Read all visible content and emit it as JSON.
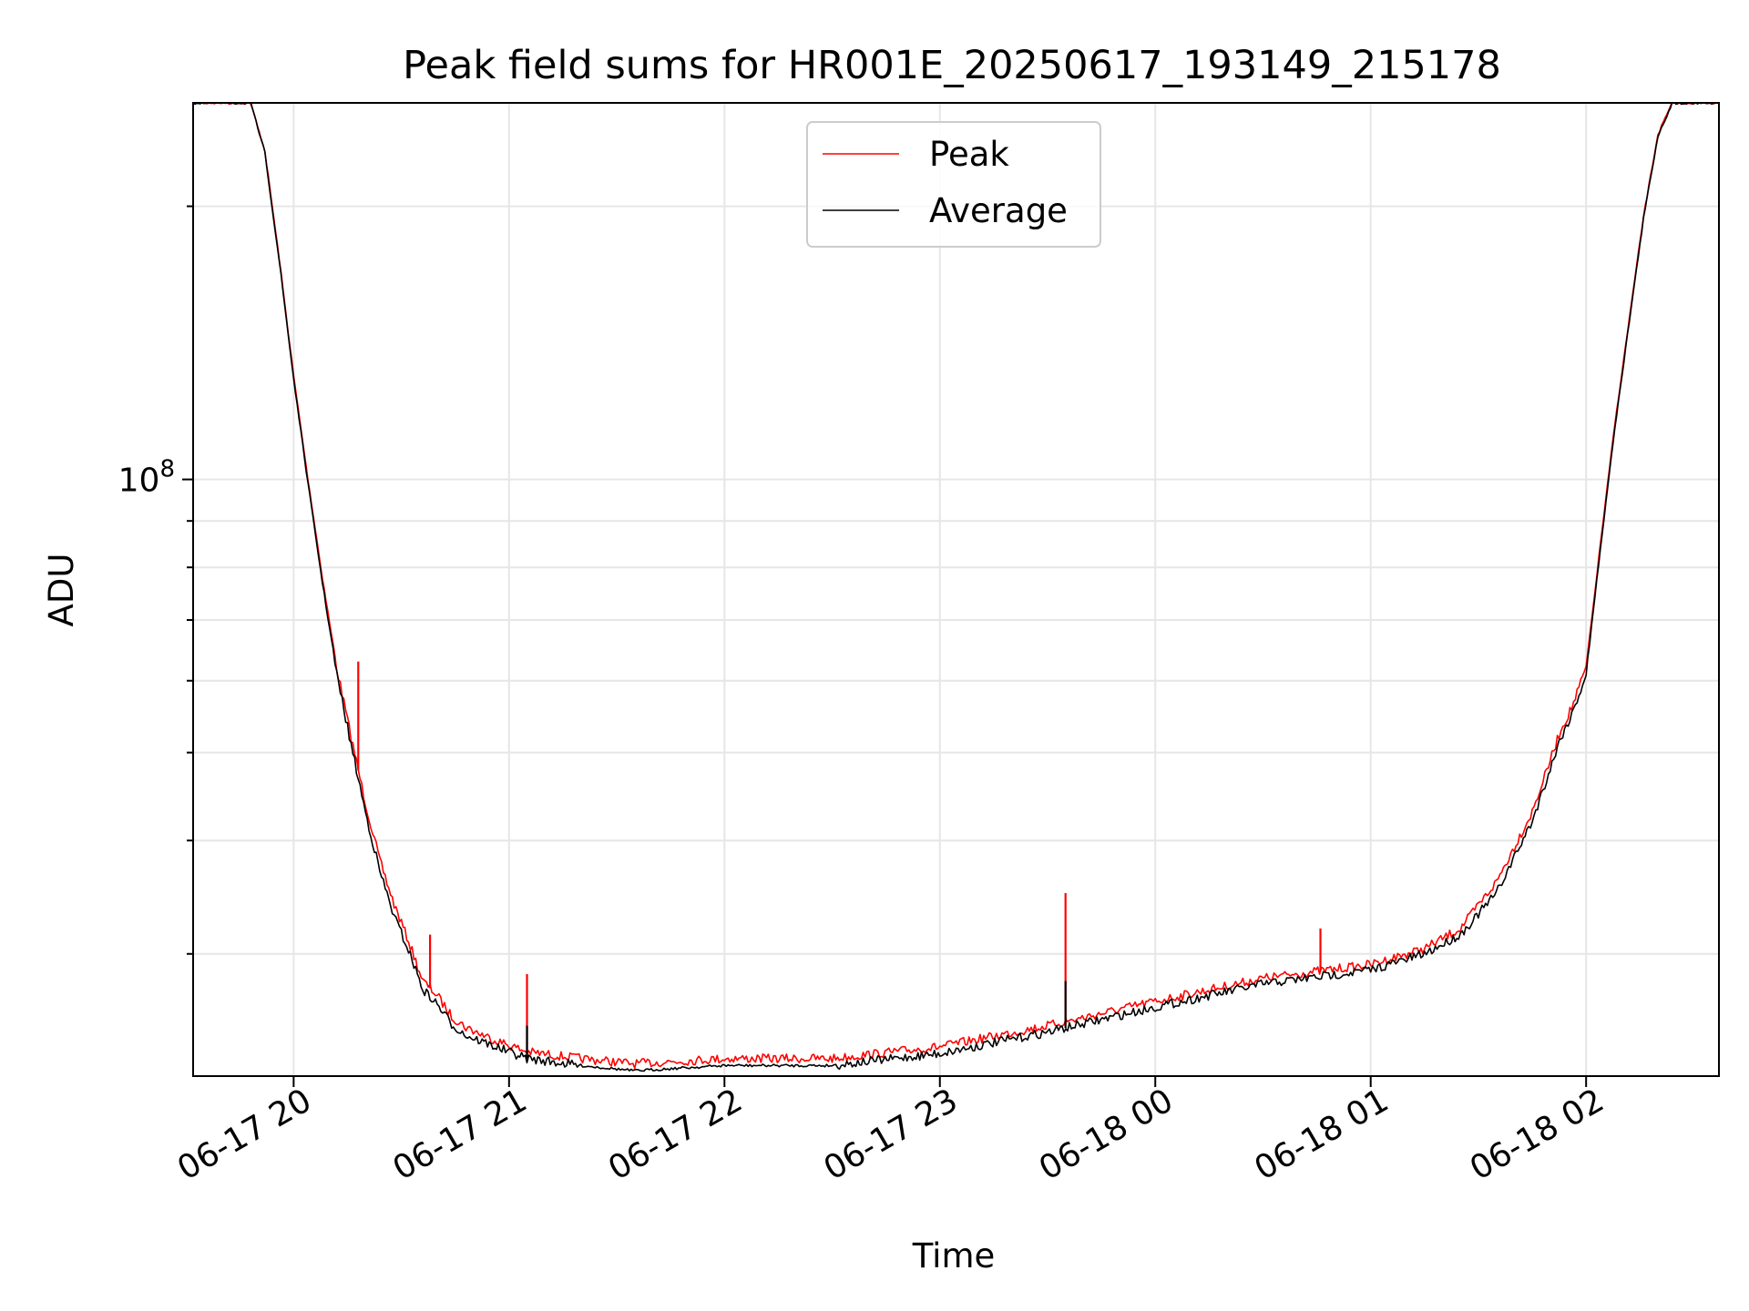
{
  "chart_data": {
    "type": "line",
    "title": "Peak field sums for HR001E_20250617_193149_215178",
    "xlabel": "Time",
    "ylabel": "ADU",
    "x_axis_type": "datetime",
    "y_scale": "log",
    "xlim": [
      "2025-06-17T19:32",
      "2025-06-18T02:37"
    ],
    "ylim": [
      22000000,
      260000000
    ],
    "x_ticks": [
      {
        "value": "2025-06-17T20:00",
        "label": "06-17 20"
      },
      {
        "value": "2025-06-17T21:00",
        "label": "06-17 21"
      },
      {
        "value": "2025-06-17T22:00",
        "label": "06-17 22"
      },
      {
        "value": "2025-06-17T23:00",
        "label": "06-17 23"
      },
      {
        "value": "2025-06-18T00:00",
        "label": "06-18 00"
      },
      {
        "value": "2025-06-18T01:00",
        "label": "06-18 01"
      },
      {
        "value": "2025-06-18T02:00",
        "label": "06-18 02"
      }
    ],
    "y_ticks": [
      {
        "value": 100000000,
        "label_base": "10",
        "label_exp": "8"
      }
    ],
    "grid": true,
    "legend": {
      "placement": "upper center"
    },
    "colors": {
      "peak": "#ff0000",
      "average": "#000000"
    },
    "series": [
      {
        "name": "Peak",
        "color": "#ff0000",
        "x": [
          "2025-06-17T19:32",
          "2025-06-17T19:48",
          "2025-06-17T19:52",
          "2025-06-17T19:56",
          "2025-06-17T20:00",
          "2025-06-17T20:04",
          "2025-06-17T20:08",
          "2025-06-17T20:12",
          "2025-06-17T20:16",
          "2025-06-17T20:20",
          "2025-06-17T20:24",
          "2025-06-17T20:28",
          "2025-06-17T20:32",
          "2025-06-17T20:36",
          "2025-06-17T20:40",
          "2025-06-17T20:44",
          "2025-06-17T20:48",
          "2025-06-17T20:55",
          "2025-06-17T21:05",
          "2025-06-17T21:20",
          "2025-06-17T21:35",
          "2025-06-17T22:00",
          "2025-06-17T22:30",
          "2025-06-17T23:00",
          "2025-06-17T23:30",
          "2025-06-18T00:00",
          "2025-06-18T00:30",
          "2025-06-18T01:00",
          "2025-06-18T01:15",
          "2025-06-18T01:25",
          "2025-06-18T01:35",
          "2025-06-18T01:45",
          "2025-06-18T01:53",
          "2025-06-18T01:56",
          "2025-06-18T02:00",
          "2025-06-18T02:04",
          "2025-06-18T02:08",
          "2025-06-18T02:12",
          "2025-06-18T02:16",
          "2025-06-18T02:20",
          "2025-06-18T02:24",
          "2025-06-18T02:37"
        ],
        "y": [
          260000000,
          260000000,
          230000000,
          175000000,
          130000000,
          100000000,
          78000000,
          62000000,
          52000000,
          44000000,
          38000000,
          34000000,
          31000000,
          28000000,
          27000000,
          25600000,
          24900000,
          24200000,
          23400000,
          23000000,
          22700000,
          23000000,
          23000000,
          23700000,
          25000000,
          26600000,
          28200000,
          29200000,
          30400000,
          32000000,
          36000000,
          43000000,
          53000000,
          56000000,
          62000000,
          85000000,
          115000000,
          150000000,
          195000000,
          240000000,
          260000000,
          260000000
        ]
      },
      {
        "name": "Average",
        "color": "#000000",
        "x": [
          "2025-06-17T19:32",
          "2025-06-17T19:48",
          "2025-06-17T19:52",
          "2025-06-17T19:56",
          "2025-06-17T20:00",
          "2025-06-17T20:04",
          "2025-06-17T20:08",
          "2025-06-17T20:12",
          "2025-06-17T20:16",
          "2025-06-17T20:20",
          "2025-06-17T20:24",
          "2025-06-17T20:28",
          "2025-06-17T20:32",
          "2025-06-17T20:36",
          "2025-06-17T20:40",
          "2025-06-17T20:44",
          "2025-06-17T20:48",
          "2025-06-17T20:55",
          "2025-06-17T21:05",
          "2025-06-17T21:20",
          "2025-06-17T21:35",
          "2025-06-17T22:00",
          "2025-06-17T22:30",
          "2025-06-17T23:00",
          "2025-06-17T23:30",
          "2025-06-18T00:00",
          "2025-06-18T00:30",
          "2025-06-18T01:00",
          "2025-06-18T01:15",
          "2025-06-18T01:25",
          "2025-06-18T01:35",
          "2025-06-18T01:45",
          "2025-06-18T01:53",
          "2025-06-18T01:56",
          "2025-06-18T02:00",
          "2025-06-18T02:04",
          "2025-06-18T02:08",
          "2025-06-18T02:12",
          "2025-06-18T02:16",
          "2025-06-18T02:20",
          "2025-06-18T02:24",
          "2025-06-18T02:37"
        ],
        "y": [
          260000000,
          260000000,
          229000000,
          174000000,
          129000000,
          99000000,
          77000000,
          61000000,
          51000000,
          43000000,
          37000000,
          33000000,
          30300000,
          27400000,
          26400000,
          25100000,
          24400000,
          23800000,
          23000000,
          22600000,
          22300000,
          22600000,
          22600000,
          23300000,
          24600000,
          26200000,
          27800000,
          28800000,
          30000000,
          31500000,
          35000000,
          42000000,
          52000000,
          55000000,
          61000000,
          84000000,
          114000000,
          149000000,
          194000000,
          239000000,
          260000000,
          260000000
        ]
      }
    ],
    "spikes": [
      {
        "series": "Peak",
        "x": "2025-06-17T20:18",
        "y": 63000000
      },
      {
        "series": "Peak",
        "x": "2025-06-17T20:38",
        "y": 31500000
      },
      {
        "series": "Peak",
        "x": "2025-06-17T21:05",
        "y": 28500000
      },
      {
        "series": "Peak",
        "x": "2025-06-17T23:35",
        "y": 35000000
      },
      {
        "series": "Peak",
        "x": "2025-06-18T00:46",
        "y": 32000000
      },
      {
        "series": "Average",
        "x": "2025-06-17T21:05",
        "y": 25000000
      },
      {
        "series": "Average",
        "x": "2025-06-17T23:35",
        "y": 28000000
      }
    ]
  }
}
